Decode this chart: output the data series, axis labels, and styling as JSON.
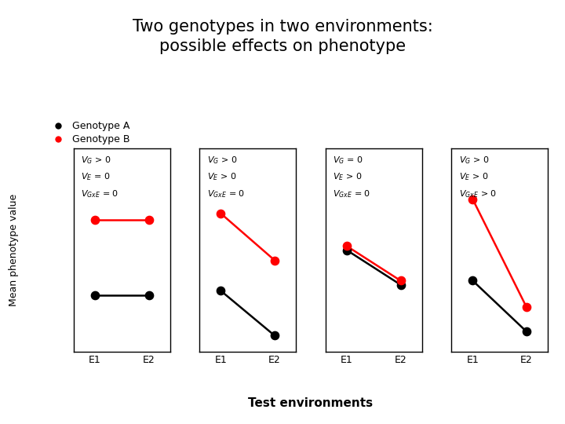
{
  "title": "Two genotypes in two environments:\npossible effects on phenotype",
  "title_fontsize": 15,
  "title_fontweight": "normal",
  "xlabel": "Test environments",
  "xlabel_fontsize": 11,
  "ylabel": "Mean phenotype value",
  "ylabel_fontsize": 9,
  "legend_labels": [
    "Genotype A",
    "Genotype B"
  ],
  "legend_colors": [
    "black",
    "red"
  ],
  "legend_fontsize": 9,
  "panels": [
    {
      "annotation_lines": [
        "V_G > 0",
        "V_E = 0",
        "V_{GxE} = 0"
      ],
      "genotype_A": [
        0.28,
        0.28
      ],
      "genotype_B": [
        0.65,
        0.65
      ]
    },
    {
      "annotation_lines": [
        "V_G > 0",
        "V_E > 0",
        "V_{GxE} = 0"
      ],
      "genotype_A": [
        0.3,
        0.08
      ],
      "genotype_B": [
        0.68,
        0.45
      ]
    },
    {
      "annotation_lines": [
        "V_G = 0",
        "V_E > 0",
        "V_{GxE} = 0"
      ],
      "genotype_A": [
        0.5,
        0.33
      ],
      "genotype_B": [
        0.52,
        0.35
      ]
    },
    {
      "annotation_lines": [
        "V_G > 0",
        "V_E > 0",
        "V_{GxE} > 0"
      ],
      "genotype_A": [
        0.35,
        0.1
      ],
      "genotype_B": [
        0.75,
        0.22
      ]
    }
  ],
  "x_positions": [
    0,
    1
  ],
  "x_tick_labels": [
    "E1",
    "E2"
  ],
  "background_color": "#ffffff",
  "panel_box_color": "#000000",
  "dot_size": 55,
  "line_width": 1.8,
  "ann_fontsize": 8.0,
  "tick_fontsize": 9
}
